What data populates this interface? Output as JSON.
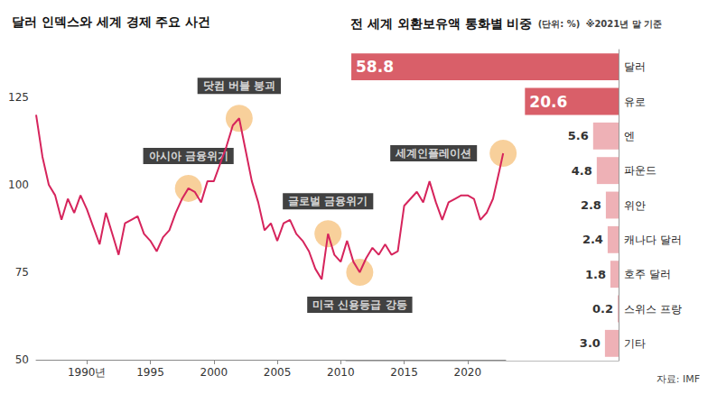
{
  "chart_data": [
    {
      "type": "line",
      "title": "달러 인덱스와 세계 경제 주요 사건",
      "x": [
        1986.0,
        1986.5,
        1987.0,
        1987.5,
        1988.0,
        1988.5,
        1989.0,
        1989.5,
        1990.0,
        1990.5,
        1991.0,
        1991.5,
        1992.0,
        1992.5,
        1993.0,
        1993.5,
        1994.0,
        1994.5,
        1995.0,
        1995.5,
        1996.0,
        1996.5,
        1997.0,
        1997.5,
        1998.0,
        1998.5,
        1999.0,
        1999.5,
        2000.0,
        2000.5,
        2001.0,
        2001.5,
        2002.0,
        2002.5,
        2003.0,
        2003.5,
        2004.0,
        2004.5,
        2005.0,
        2005.5,
        2006.0,
        2006.5,
        2007.0,
        2007.5,
        2008.0,
        2008.5,
        2009.0,
        2009.5,
        2010.0,
        2010.5,
        2011.0,
        2011.5,
        2012.0,
        2012.5,
        2013.0,
        2013.5,
        2014.0,
        2014.5,
        2015.0,
        2015.5,
        2016.0,
        2016.5,
        2017.0,
        2017.5,
        2018.0,
        2018.5,
        2019.0,
        2019.5,
        2020.0,
        2020.5,
        2021.0,
        2021.5,
        2022.0,
        2022.5,
        2022.8
      ],
      "values": [
        120,
        108,
        100,
        97,
        90,
        96,
        92,
        97,
        93,
        88,
        83,
        92,
        86,
        80,
        89,
        90,
        91,
        86,
        84,
        81,
        85,
        87,
        92,
        96,
        99,
        98,
        95,
        101,
        101,
        106,
        111,
        117,
        119,
        110,
        101,
        95,
        87,
        89,
        84,
        89,
        90,
        86,
        84,
        81,
        76,
        73,
        86,
        80,
        78,
        84,
        78,
        75,
        79,
        82,
        80,
        83,
        80,
        81,
        94,
        96,
        98,
        95,
        101,
        95,
        90,
        95,
        96,
        97,
        97,
        96,
        90,
        92,
        96,
        104,
        109
      ],
      "color": "#d6245c",
      "xlim": [
        1986,
        2023
      ],
      "xticks": [
        {
          "value": 1990,
          "label": "1990년"
        },
        1995,
        2000,
        2005,
        2010,
        2015,
        2020
      ],
      "ylim": [
        50,
        125
      ],
      "yticks": [
        50,
        75,
        100,
        125
      ],
      "grid": false,
      "annotations": [
        {
          "text": "아시아 금융위기",
          "x": 1998.0,
          "y": 99
        },
        {
          "text": "닷컴 버블 붕괴",
          "x": 2002.0,
          "y": 119
        },
        {
          "text": "글로벌 금융위기",
          "x": 2009.0,
          "y": 86
        },
        {
          "text": "미국 신용등급 강등",
          "x": 2011.5,
          "y": 75
        },
        {
          "text": "세계인플레이션",
          "x": 2022.8,
          "y": 109
        }
      ]
    },
    {
      "type": "bar",
      "orientation": "horizontal",
      "title": "전 세계 외환보유액 통화별 비중",
      "subtitle": "(단위: %)",
      "note": "※2021년 말 기준",
      "source": "자료: IMF",
      "categories": [
        "달러",
        "유로",
        "엔",
        "파운드",
        "위안",
        "캐나다 달러",
        "호주 달러",
        "스위스 프랑",
        "기타"
      ],
      "values": [
        58.8,
        20.6,
        5.6,
        4.8,
        2.8,
        2.4,
        1.8,
        0.2,
        3.0
      ],
      "value_labels": [
        "58.8",
        "20.6",
        "5.6",
        "4.8",
        "2.8",
        "2.4",
        "1.8",
        "0.2",
        "3.0"
      ],
      "colors": [
        "#d95f69",
        "#d95f69",
        "#eeb1b6",
        "#eeb1b6",
        "#eeb1b6",
        "#eeb1b6",
        "#eeb1b6",
        "#eeb1b6",
        "#eeb1b6"
      ],
      "xlim": [
        0,
        60
      ],
      "xticks": [],
      "grid": false,
      "data_labels": true,
      "tick_labels": "y"
    }
  ]
}
